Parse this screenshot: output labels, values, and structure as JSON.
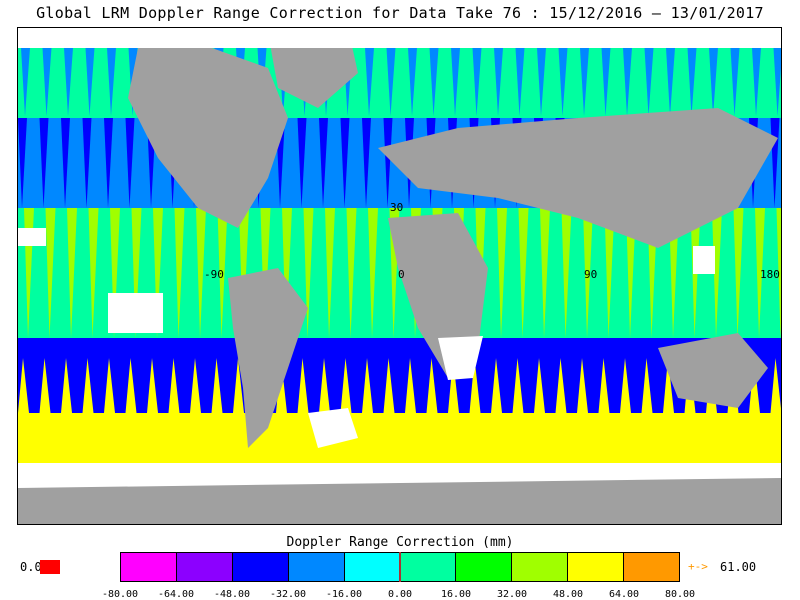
{
  "title": "Global LRM Doppler Range Correction for Data Take 76 : 15/12/2016 — 13/01/2017",
  "map": {
    "lat_labels": [
      "30"
    ],
    "lon_labels": [
      "-90",
      "0",
      "90",
      "180"
    ]
  },
  "colorbar": {
    "title": "Doppler Range Correction (mm)",
    "tick_labels": [
      "-80.00",
      "-64.00",
      "-48.00",
      "-32.00",
      "-16.00",
      "0.00",
      "16.00",
      "32.00",
      "48.00",
      "64.00",
      "80.00"
    ],
    "colors": [
      "#ff00ff",
      "#8c00ff",
      "#0000ff",
      "#0088ff",
      "#00ffff",
      "#00ffa0",
      "#00ff00",
      "#a0ff00",
      "#ffff00",
      "#ff9900"
    ],
    "zero_label": "0.0",
    "zero_color": "#ff0000",
    "overflow_arrow": "+->",
    "overflow_value": "61.00",
    "overflow_color": "#ff9900"
  },
  "colors": {
    "land": "#a0a0a0",
    "nodata": "#ffffff",
    "band_south": "#0000cc"
  }
}
